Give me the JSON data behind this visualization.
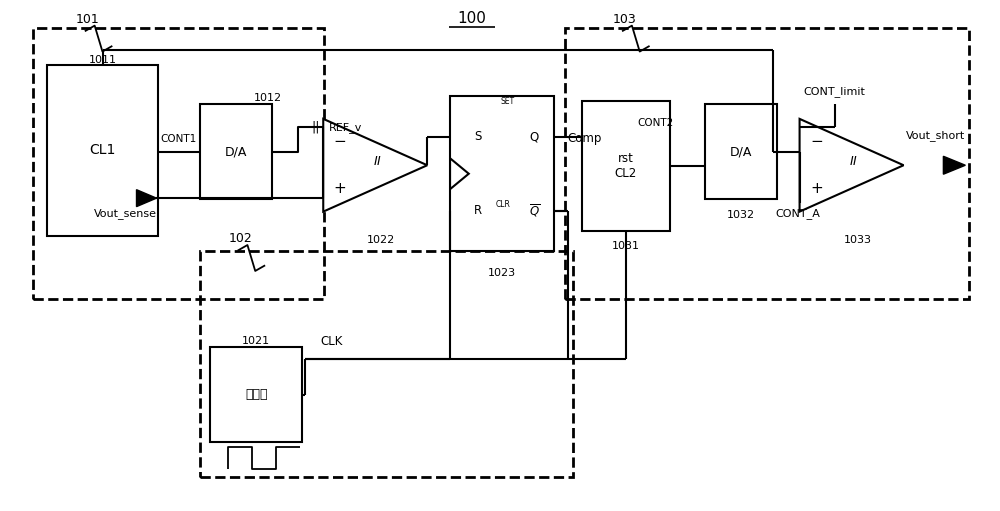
{
  "figsize": [
    10.0,
    5.11
  ],
  "dpi": 100,
  "bg": "#ffffff",
  "title": "100",
  "n101": "101",
  "n102": "102",
  "n103": "103",
  "n1011": "1011",
  "n1012": "1012",
  "n1021": "1021",
  "n1022": "1022",
  "n1023": "1023",
  "n1031": "1031",
  "n1032": "1032",
  "n1033": "1033",
  "lCL1": "CL1",
  "lDA": "D/A",
  "lTimer": "计时器",
  "lCONT1": "CONT1",
  "lREF_v": "REF_v",
  "lCONT2": "CONT2",
  "lCONT_limit": "CONT_limit",
  "lCONT_A": "CONT_A",
  "lVout_sense": "Vout_sense",
  "lVout_short": "Vout_short",
  "lCLK": "CLK",
  "lComp": "Comp",
  "lSET": "SET",
  "lCLR": "CLR",
  "lS": "S",
  "lR": "R",
  "lQ": "Q",
  "lrstCL2": "rst\nCL2"
}
